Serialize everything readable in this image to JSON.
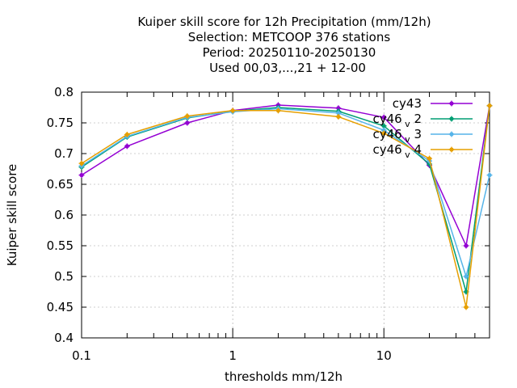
{
  "chart_data": {
    "type": "line",
    "title_lines": [
      "Kuiper skill score  for 12h Precipitation (mm/12h)",
      "Selection: METCOOP    376 stations",
      "Period: 20250110-20250130",
      "Used  00,03,...,21  + 12-00"
    ],
    "xlabel": "thresholds mm/12h",
    "ylabel": "Kuiper skill score",
    "x_scale": "log",
    "xlim": [
      0.1,
      50
    ],
    "ylim": [
      0.4,
      0.8
    ],
    "x_ticks": [
      {
        "value": 0.1,
        "label": "0.1"
      },
      {
        "value": 1,
        "label": "1"
      },
      {
        "value": 10,
        "label": "10"
      }
    ],
    "y_ticks": [
      {
        "value": 0.4,
        "label": "0.4"
      },
      {
        "value": 0.45,
        "label": "0.45"
      },
      {
        "value": 0.5,
        "label": "0.5"
      },
      {
        "value": 0.55,
        "label": "0.55"
      },
      {
        "value": 0.6,
        "label": "0.6"
      },
      {
        "value": 0.65,
        "label": "0.65"
      },
      {
        "value": 0.7,
        "label": "0.7"
      },
      {
        "value": 0.75,
        "label": "0.75"
      },
      {
        "value": 0.8,
        "label": "0.8"
      }
    ],
    "grid": true,
    "legend_position": "top-right",
    "x": [
      0.1,
      0.2,
      0.5,
      1,
      2,
      5,
      10,
      20,
      35,
      50
    ],
    "series": [
      {
        "name": "cy43",
        "legend_main": "cy43",
        "legend_sub": "",
        "legend_tail": "",
        "color": "#9400d3",
        "values": [
          0.665,
          0.712,
          0.75,
          0.77,
          0.779,
          0.774,
          0.759,
          0.681,
          0.55,
          0.778
        ]
      },
      {
        "name": "cy46_v2",
        "legend_main": "cy46",
        "legend_sub": "v",
        "legend_tail": "2",
        "color": "#009e73",
        "values": [
          0.678,
          0.727,
          0.758,
          0.769,
          0.775,
          0.769,
          0.745,
          0.683,
          0.475,
          0.778
        ]
      },
      {
        "name": "cy46_v3",
        "legend_main": "cy46",
        "legend_sub": "v",
        "legend_tail": "3",
        "color": "#56b4e9",
        "values": [
          0.68,
          0.728,
          0.759,
          0.768,
          0.773,
          0.766,
          0.738,
          0.688,
          0.5,
          0.665
        ]
      },
      {
        "name": "cy46_v4",
        "legend_main": "cy46",
        "legend_sub": "v",
        "legend_tail": "4",
        "color": "#e69f00",
        "values": [
          0.684,
          0.731,
          0.761,
          0.77,
          0.77,
          0.76,
          0.733,
          0.692,
          0.45,
          0.778
        ]
      }
    ]
  }
}
